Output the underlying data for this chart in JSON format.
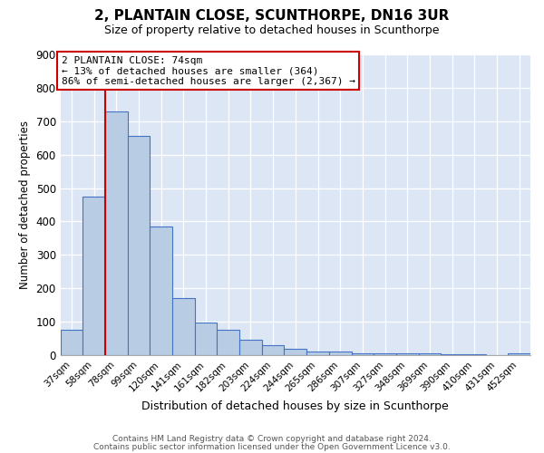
{
  "title": "2, PLANTAIN CLOSE, SCUNTHORPE, DN16 3UR",
  "subtitle": "Size of property relative to detached houses in Scunthorpe",
  "xlabel": "Distribution of detached houses by size in Scunthorpe",
  "ylabel": "Number of detached properties",
  "bar_labels": [
    "37sqm",
    "58sqm",
    "78sqm",
    "99sqm",
    "120sqm",
    "141sqm",
    "161sqm",
    "182sqm",
    "203sqm",
    "224sqm",
    "244sqm",
    "265sqm",
    "286sqm",
    "307sqm",
    "327sqm",
    "348sqm",
    "369sqm",
    "390sqm",
    "410sqm",
    "431sqm",
    "452sqm"
  ],
  "bar_values": [
    75,
    475,
    730,
    655,
    385,
    170,
    97,
    75,
    45,
    30,
    20,
    12,
    10,
    5,
    5,
    4,
    4,
    3,
    3,
    0,
    5
  ],
  "bar_color": "#b8cce4",
  "bar_edge_color": "#4472c4",
  "vline_index": 2,
  "vline_color": "#cc0000",
  "annotation_title": "2 PLANTAIN CLOSE: 74sqm",
  "annotation_line1": "← 13% of detached houses are smaller (364)",
  "annotation_line2": "86% of semi-detached houses are larger (2,367) →",
  "annotation_box_color": "#ffffff",
  "annotation_box_edge": "#cc0000",
  "ylim": [
    0,
    900
  ],
  "yticks": [
    0,
    100,
    200,
    300,
    400,
    500,
    600,
    700,
    800,
    900
  ],
  "footer1": "Contains HM Land Registry data © Crown copyright and database right 2024.",
  "footer2": "Contains public sector information licensed under the Open Government Licence v3.0.",
  "bg_color": "#ffffff",
  "plot_bg_color": "#dce6f5"
}
